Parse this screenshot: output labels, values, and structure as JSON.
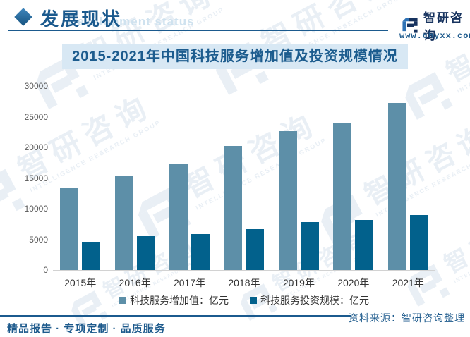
{
  "header": {
    "title": "发展现状",
    "title_watermark_en": "Development status"
  },
  "brand": {
    "logo_name": "智研咨询",
    "website": "www.chyxx.com"
  },
  "watermark": {
    "cn": "智研咨询",
    "en": "INTELLIGENCE RESEARCH GROUP"
  },
  "chart_data": {
    "type": "bar",
    "title": "2015-2021年中国科技服务增加值及投资规模情况",
    "categories": [
      "2015年",
      "2016年",
      "2017年",
      "2018年",
      "2019年",
      "2020年",
      "2021年"
    ],
    "series": [
      {
        "name": "科技服务增加值：亿元",
        "color": "#5D8FA8",
        "values": [
          13400,
          15400,
          17400,
          20200,
          22600,
          24000,
          27200
        ]
      },
      {
        "name": "科技服务投资规模：亿元",
        "color": "#02618C",
        "values": [
          4600,
          5500,
          5900,
          6700,
          7800,
          8200,
          9000
        ]
      }
    ],
    "ylim": [
      0,
      30000
    ],
    "yticks": [
      0,
      5000,
      10000,
      15000,
      20000,
      25000,
      30000
    ],
    "grid": false,
    "legend_position": "bottom"
  },
  "footer": {
    "source": "资料来源：智研咨询整理",
    "slogan": "精品报告 · 专项定制 · 品质服务"
  },
  "colors": {
    "brand_blue": "#1B5A8E",
    "title_band_bg": "#D8E8F4",
    "series_light": "#5D8FA8",
    "series_dark": "#02618C",
    "watermark": "#E9EFF5",
    "axis_line": "#D2D2D2",
    "tick_text": "#595959"
  }
}
